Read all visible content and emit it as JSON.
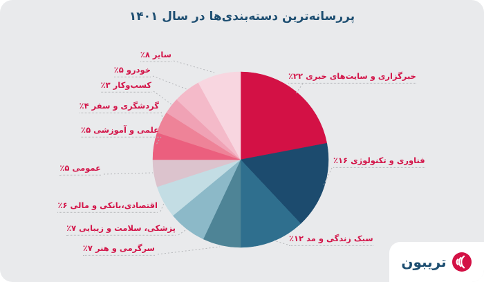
{
  "title": "پررسانه‌ترین دسته‌بندی‌ها در سال ۱۴۰۱",
  "colors": {
    "page_background": "#ffffff",
    "canvas_background": "#e9eaec",
    "title_text": "#1d4e71",
    "label_text": "#d31549",
    "leader_line": "#b4b6b9",
    "logo_text": "#1d4e71",
    "logo_mark": "#d31145"
  },
  "logo": {
    "text": "تریبون"
  },
  "chart_data": {
    "type": "pie",
    "title": "پررسانه‌ترین دسته‌بندی‌ها در سال ۱۴۰۱",
    "start_angle": "12-oclock",
    "direction": "clockwise",
    "legend_position": "callout-labels",
    "series": [
      {
        "name": "خبرگزاری و سایت‌های خبری",
        "value": 22,
        "percent_display": "٪۲۲",
        "color": "#d31145"
      },
      {
        "name": "فناوری و تکنولوژی",
        "value": 16,
        "percent_display": "٪۱۶",
        "color": "#1c4b6e"
      },
      {
        "name": "سبک زندگی و مد",
        "value": 12,
        "percent_display": "٪۱۲",
        "color": "#2f6f8e"
      },
      {
        "name": "سرگرمی و هنر",
        "value": 7,
        "percent_display": "٪۷",
        "color": "#4e8496"
      },
      {
        "name": "پزشکی، سلامت و زیبایی",
        "value": 7,
        "percent_display": "٪۷",
        "color": "#8cb9c8"
      },
      {
        "name": "اقتصادی،بانکی و مالی",
        "value": 6,
        "percent_display": "٪۶",
        "color": "#c3dde4"
      },
      {
        "name": "عمومی",
        "value": 5,
        "percent_display": "٪۵",
        "color": "#dcc3cd"
      },
      {
        "name": "علمی و آموزشی",
        "value": 5,
        "percent_display": "٪۵",
        "color": "#eb5f7e"
      },
      {
        "name": "گردشگری و سفر",
        "value": 4,
        "percent_display": "٪۴",
        "color": "#ee8398"
      },
      {
        "name": "کسب‌وکار",
        "value": 3,
        "percent_display": "٪۳",
        "color": "#f0a2b5"
      },
      {
        "name": "خودرو",
        "value": 5,
        "percent_display": "٪۵",
        "color": "#f4bac9"
      },
      {
        "name": "سایر",
        "value": 8,
        "percent_display": "٪۸",
        "color": "#f8d6e0"
      }
    ]
  }
}
